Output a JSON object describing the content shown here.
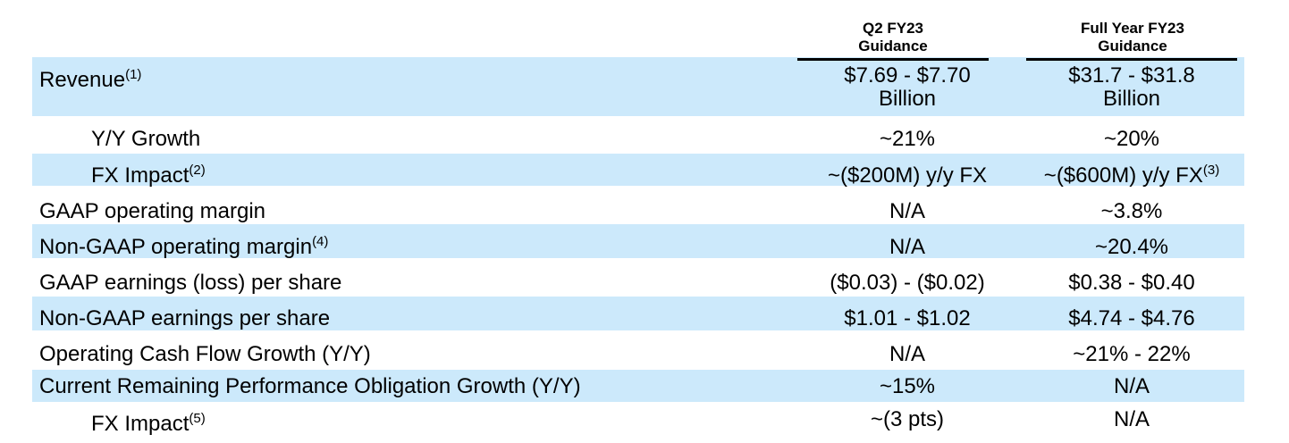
{
  "header": {
    "col1_line1": "Q2 FY23",
    "col1_line2": "Guidance",
    "col2_line1": "Full Year FY23",
    "col2_line2": "Guidance"
  },
  "rows": [
    {
      "label": "Revenue",
      "note": "(1)",
      "indent": false,
      "shaded": true,
      "q2_line1": "$7.69 - $7.70",
      "q2_line2": "Billion",
      "fy_line1": "$31.7 - $31.8",
      "fy_line2": "Billion",
      "fy_note": ""
    },
    {
      "label": "Y/Y Growth",
      "note": "",
      "indent": true,
      "shaded": false,
      "q2_line1": "~21%",
      "q2_line2": "",
      "fy_line1": "~20%",
      "fy_line2": "",
      "fy_note": ""
    },
    {
      "label": "FX Impact",
      "note": "(2)",
      "indent": true,
      "shaded": true,
      "q2_line1": "~($200M) y/y FX",
      "q2_line2": "",
      "fy_line1": "~($600M) y/y FX",
      "fy_line2": "",
      "fy_note": "(3)"
    },
    {
      "label": "GAAP operating margin",
      "note": "",
      "indent": false,
      "shaded": false,
      "q2_line1": "N/A",
      "q2_line2": "",
      "fy_line1": "~3.8%",
      "fy_line2": "",
      "fy_note": ""
    },
    {
      "label": "Non-GAAP operating margin",
      "note": "(4)",
      "indent": false,
      "shaded": true,
      "q2_line1": "N/A",
      "q2_line2": "",
      "fy_line1": "~20.4%",
      "fy_line2": "",
      "fy_note": ""
    },
    {
      "label": "GAAP earnings (loss) per share",
      "note": "",
      "indent": false,
      "shaded": false,
      "q2_line1": "($0.03) - ($0.02)",
      "q2_line2": "",
      "fy_line1": "$0.38 - $0.40",
      "fy_line2": "",
      "fy_note": ""
    },
    {
      "label": "Non-GAAP earnings per share",
      "note": "",
      "indent": false,
      "shaded": true,
      "q2_line1": "$1.01 - $1.02",
      "q2_line2": "",
      "fy_line1": "$4.74 - $4.76",
      "fy_line2": "",
      "fy_note": ""
    },
    {
      "label": "Operating Cash Flow Growth (Y/Y)",
      "note": "",
      "indent": false,
      "shaded": false,
      "q2_line1": "N/A",
      "q2_line2": "",
      "fy_line1": "~21% - 22%",
      "fy_line2": "",
      "fy_note": ""
    },
    {
      "label": "Current Remaining Performance Obligation Growth (Y/Y)",
      "note": "",
      "indent": false,
      "shaded": true,
      "q2_line1": "~15%",
      "q2_line2": "",
      "fy_line1": "N/A",
      "fy_line2": "",
      "fy_note": ""
    },
    {
      "label": "FX Impact",
      "note": "(5)",
      "indent": true,
      "shaded": false,
      "q2_line1": "~(3 pts)",
      "q2_line2": "",
      "fy_line1": "N/A",
      "fy_line2": "",
      "fy_note": ""
    }
  ],
  "colors": {
    "row_shade": "#cce9fb",
    "rule": "#000000"
  }
}
